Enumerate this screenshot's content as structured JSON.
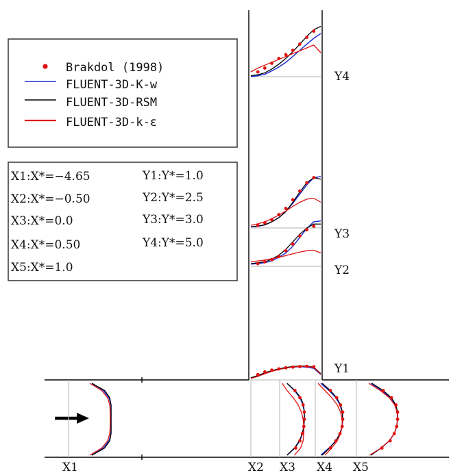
{
  "colors": {
    "experiment": "#e01010",
    "k_w": "#1f2fd0",
    "rsm": "#000000",
    "k_eps": "#e01010",
    "geometry": "#000000",
    "gridline": "#c0c0c0"
  },
  "legend": {
    "entries": [
      {
        "label": "Brakdol (1998)",
        "marker": "dot",
        "color": "#e01010"
      },
      {
        "label": "FLUENT-3D-K-w",
        "marker": "line",
        "color": "#1f2fd0"
      },
      {
        "label": "FLUENT-3D-RSM",
        "marker": "line",
        "color": "#000000"
      },
      {
        "label": "FLUENT-3D-k-ε",
        "marker": "line",
        "color": "#e01010"
      }
    ]
  },
  "stations_box": {
    "x_stations": [
      "X1:X*=−4.65",
      "X2:X*=−0.50",
      "X3:X*=0.0",
      "X4:X*=0.50",
      "X5:X*=1.0"
    ],
    "y_stations": [
      "Y1:Y*=1.0",
      "Y2:Y*=2.5",
      "Y3:Y*=3.0",
      "Y4:Y*=5.0"
    ]
  },
  "arrow": {
    "icon": "flow-direction-arrow-icon"
  },
  "chart_data": {
    "type": "line",
    "x_station_labels": [
      "X1",
      "X2",
      "X3",
      "X4",
      "X5"
    ],
    "y_station_labels": [
      "Y1",
      "Y2",
      "Y3",
      "Y4"
    ],
    "x_stations": [
      {
        "label": "X1",
        "x_star": -4.65
      },
      {
        "label": "X2",
        "x_star": -0.5
      },
      {
        "label": "X3",
        "x_star": 0.0
      },
      {
        "label": "X4",
        "x_star": 0.5
      },
      {
        "label": "X5",
        "x_star": 1.0
      }
    ],
    "y_stations": [
      {
        "label": "Y1",
        "y_star": 1.0
      },
      {
        "label": "Y2",
        "y_star": 2.5
      },
      {
        "label": "Y3",
        "y_star": 3.0
      },
      {
        "label": "Y4",
        "y_star": 5.0
      }
    ],
    "series": [
      {
        "name": "Brakdol (1998)",
        "kind": "scatter"
      },
      {
        "name": "FLUENT-3D-K-w",
        "kind": "line"
      },
      {
        "name": "FLUENT-3D-RSM",
        "kind": "line"
      },
      {
        "name": "FLUENT-3D-k-ε",
        "kind": "line"
      }
    ],
    "y_station_profiles": {
      "s": [
        0.0,
        0.1,
        0.2,
        0.3,
        0.4,
        0.5,
        0.6,
        0.7,
        0.8,
        0.9,
        1.0
      ],
      "Y4": {
        "k_w": [
          0.0,
          0.02,
          0.05,
          0.12,
          0.2,
          0.3,
          0.42,
          0.55,
          0.68,
          0.8,
          0.9
        ],
        "rsm": [
          0.02,
          0.04,
          0.08,
          0.16,
          0.26,
          0.38,
          0.52,
          0.68,
          0.84,
          0.98,
          1.05
        ],
        "k_eps": [
          0.1,
          0.18,
          0.24,
          0.3,
          0.36,
          0.42,
          0.48,
          0.54,
          0.6,
          0.66,
          0.5
        ],
        "exp": [
          0.05,
          0.1,
          0.18,
          0.28,
          0.38,
          0.46,
          0.55,
          0.68,
          0.82,
          0.95,
          1.05
        ]
      },
      "Y3": {
        "k_w": [
          0.02,
          0.03,
          0.06,
          0.12,
          0.2,
          0.32,
          0.48,
          0.66,
          0.84,
          0.98,
          1.0
        ],
        "rsm": [
          0.02,
          0.04,
          0.06,
          0.12,
          0.2,
          0.32,
          0.5,
          0.7,
          0.88,
          0.98,
          0.95
        ],
        "k_eps": [
          0.05,
          0.08,
          0.12,
          0.18,
          0.25,
          0.33,
          0.42,
          0.5,
          0.56,
          0.58,
          0.5
        ],
        "exp": [
          0.0,
          0.05,
          0.1,
          0.16,
          0.26,
          0.38,
          0.55,
          0.72,
          0.88,
          0.98,
          1.0
        ]
      },
      "Y2": {
        "k_w": [
          0.05,
          0.06,
          0.08,
          0.12,
          0.2,
          0.3,
          0.45,
          0.65,
          0.85,
          1.0,
          1.02
        ],
        "rsm": [
          0.06,
          0.08,
          0.1,
          0.16,
          0.25,
          0.38,
          0.55,
          0.72,
          0.86,
          0.95,
          0.95
        ],
        "k_eps": [
          0.1,
          0.12,
          0.14,
          0.17,
          0.2,
          0.24,
          0.28,
          0.32,
          0.35,
          0.36,
          0.3
        ],
        "exp": [
          0.04,
          0.06,
          0.1,
          0.15,
          0.22,
          0.35,
          0.5,
          0.68,
          0.82,
          0.9,
          0.95
        ]
      },
      "Y1": {
        "k_w": [
          0.1,
          0.2,
          0.35,
          0.5,
          0.6,
          0.68,
          0.72,
          0.74,
          0.72,
          0.65,
          0.3
        ],
        "rsm": [
          0.12,
          0.25,
          0.4,
          0.52,
          0.62,
          0.7,
          0.75,
          0.78,
          0.78,
          0.72,
          0.35
        ],
        "k_eps": [
          0.08,
          0.2,
          0.35,
          0.48,
          0.58,
          0.66,
          0.72,
          0.76,
          0.76,
          0.7,
          0.32
        ],
        "exp": [
          0.15,
          0.3,
          0.45,
          0.55,
          0.62,
          0.68,
          0.72,
          0.75,
          0.76,
          0.74,
          0.5
        ]
      }
    },
    "x_station_profiles": {
      "t": [
        0.0,
        0.1,
        0.2,
        0.3,
        0.4,
        0.5,
        0.6,
        0.7,
        0.8,
        0.9,
        1.0
      ],
      "X1": {
        "k_w": [
          0.55,
          0.82,
          0.95,
          1.0,
          1.0,
          1.0,
          1.0,
          1.0,
          0.95,
          0.82,
          0.55
        ],
        "rsm": [
          0.55,
          0.85,
          0.97,
          1.0,
          1.0,
          1.0,
          1.0,
          1.0,
          0.97,
          0.85,
          0.55
        ],
        "k_eps": [
          0.5,
          0.78,
          0.92,
          0.97,
          0.98,
          0.98,
          0.98,
          0.97,
          0.92,
          0.78,
          0.5
        ],
        "exp": [
          0.6,
          0.85,
          0.95,
          1.0,
          1.0,
          1.0,
          1.0,
          1.0,
          0.95,
          0.85,
          0.6
        ]
      },
      "X3": {
        "k_w": [
          0.3,
          0.6,
          0.82,
          0.95,
          1.0,
          1.0,
          0.98,
          0.92,
          0.82,
          0.62,
          0.3
        ],
        "rsm": [
          0.3,
          0.62,
          0.85,
          0.97,
          1.0,
          1.0,
          0.98,
          0.92,
          0.8,
          0.6,
          0.3
        ],
        "k_eps": [
          0.1,
          0.3,
          0.55,
          0.75,
          0.88,
          0.95,
          0.98,
          0.98,
          0.95,
          0.85,
          0.6
        ],
        "exp": [
          0.35,
          0.62,
          0.82,
          0.95,
          1.0,
          1.0,
          0.98,
          0.92,
          0.82,
          0.65,
          0.4
        ]
      },
      "X4": {
        "k_w": [
          0.2,
          0.5,
          0.75,
          0.9,
          0.98,
          1.0,
          0.98,
          0.9,
          0.75,
          0.5,
          0.2
        ],
        "rsm": [
          0.25,
          0.55,
          0.78,
          0.92,
          0.99,
          1.0,
          0.98,
          0.9,
          0.75,
          0.52,
          0.25
        ],
        "k_eps": [
          0.1,
          0.35,
          0.6,
          0.8,
          0.92,
          0.98,
          0.98,
          0.92,
          0.8,
          0.6,
          0.35
        ],
        "exp": [
          0.3,
          0.55,
          0.78,
          0.92,
          1.0,
          1.0,
          0.98,
          0.9,
          0.75,
          0.55,
          0.3
        ]
      },
      "X5": {
        "k_w": [
          0.35,
          0.62,
          0.82,
          0.95,
          1.0,
          1.0,
          0.98,
          0.92,
          0.8,
          0.6,
          0.35
        ],
        "rsm": [
          0.38,
          0.65,
          0.85,
          0.96,
          1.0,
          1.0,
          0.98,
          0.92,
          0.8,
          0.6,
          0.35
        ],
        "k_eps": [
          0.3,
          0.58,
          0.8,
          0.93,
          0.99,
          1.0,
          0.98,
          0.92,
          0.8,
          0.6,
          0.32
        ],
        "exp": [
          0.4,
          0.65,
          0.85,
          0.96,
          1.0,
          1.0,
          0.98,
          0.92,
          0.82,
          0.62,
          0.4
        ]
      }
    }
  }
}
